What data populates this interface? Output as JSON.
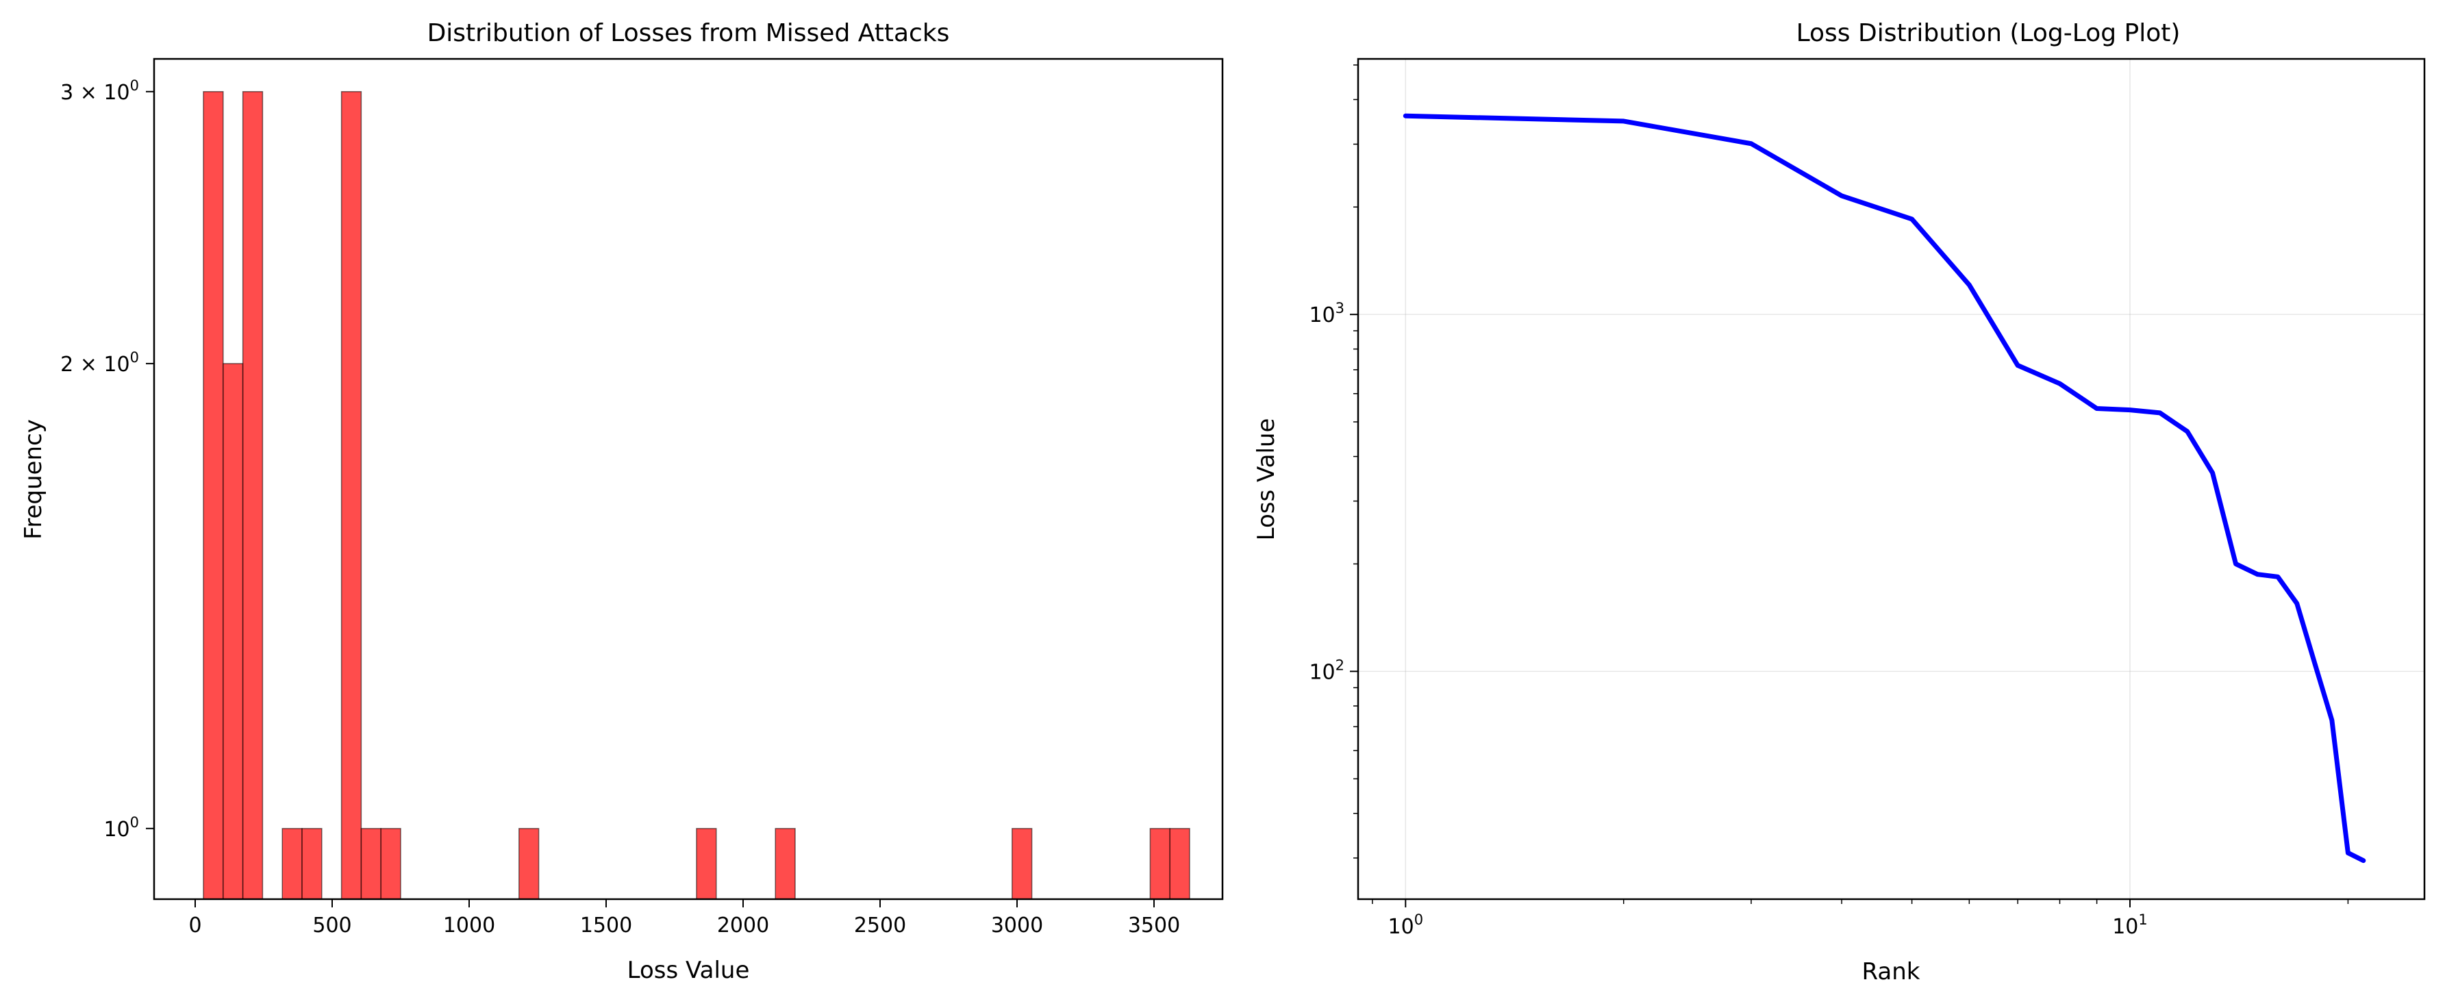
{
  "chart_data": [
    {
      "type": "bar",
      "title": "Distribution of Losses from Missed Attacks",
      "xlabel": "Loss Value",
      "ylabel": "Frequency",
      "xlim": [
        -150,
        3750
      ],
      "ylim": [
        0.9,
        3.15
      ],
      "yscale": "log",
      "grid": false,
      "bar_color": "#ff0000",
      "bar_alpha": 0.7,
      "bar_edge_color": "#000000",
      "x_ticks": [
        0,
        500,
        1000,
        1500,
        2000,
        2500,
        3000,
        3500
      ],
      "x_tick_labels": [
        "0",
        "500",
        "1000",
        "1500",
        "2000",
        "2500",
        "3000",
        "3500"
      ],
      "y_ticks": [
        {
          "value": 3,
          "base": "3 × 10",
          "exp": "0"
        },
        {
          "value": 2,
          "base": "2 × 10",
          "exp": "0"
        },
        {
          "value": 1,
          "base": "10",
          "exp": "0"
        }
      ],
      "bin_width": 72,
      "bins": [
        {
          "start": 30,
          "count": 3
        },
        {
          "start": 102,
          "count": 2
        },
        {
          "start": 174,
          "count": 3
        },
        {
          "start": 318,
          "count": 1
        },
        {
          "start": 390,
          "count": 1
        },
        {
          "start": 534,
          "count": 3
        },
        {
          "start": 606,
          "count": 1
        },
        {
          "start": 678,
          "count": 1
        },
        {
          "start": 1182,
          "count": 1
        },
        {
          "start": 1830,
          "count": 1
        },
        {
          "start": 2118,
          "count": 1
        },
        {
          "start": 2982,
          "count": 1
        },
        {
          "start": 3486,
          "count": 1
        },
        {
          "start": 3558,
          "count": 1
        }
      ]
    },
    {
      "type": "line",
      "title": "Loss Distribution (Log-Log Plot)",
      "xlabel": "Rank",
      "ylabel": "Loss Value",
      "xscale": "log",
      "yscale": "log",
      "xlim": [
        0.86,
        25.5
      ],
      "ylim": [
        23,
        5200
      ],
      "grid": true,
      "line_color": "#0000ff",
      "x_ticks": [
        {
          "value": 1,
          "base": "10",
          "exp": "0"
        },
        {
          "value": 10,
          "base": "10",
          "exp": "1"
        }
      ],
      "y_ticks": [
        {
          "value": 100,
          "base": "10",
          "exp": "2"
        },
        {
          "value": 1000,
          "base": "10",
          "exp": "3"
        }
      ],
      "series": [
        {
          "x": [
            1,
            2,
            3,
            4,
            5,
            6,
            7,
            8,
            9,
            10,
            11,
            12,
            13,
            14,
            15,
            16,
            17,
            18,
            19,
            20,
            21
          ],
          "y": [
            3600,
            3480,
            3010,
            2150,
            1850,
            1210,
            720,
            640,
            545,
            540,
            530,
            470,
            360,
            200,
            187,
            184,
            155,
            105,
            73,
            31,
            29.5
          ]
        }
      ]
    }
  ]
}
